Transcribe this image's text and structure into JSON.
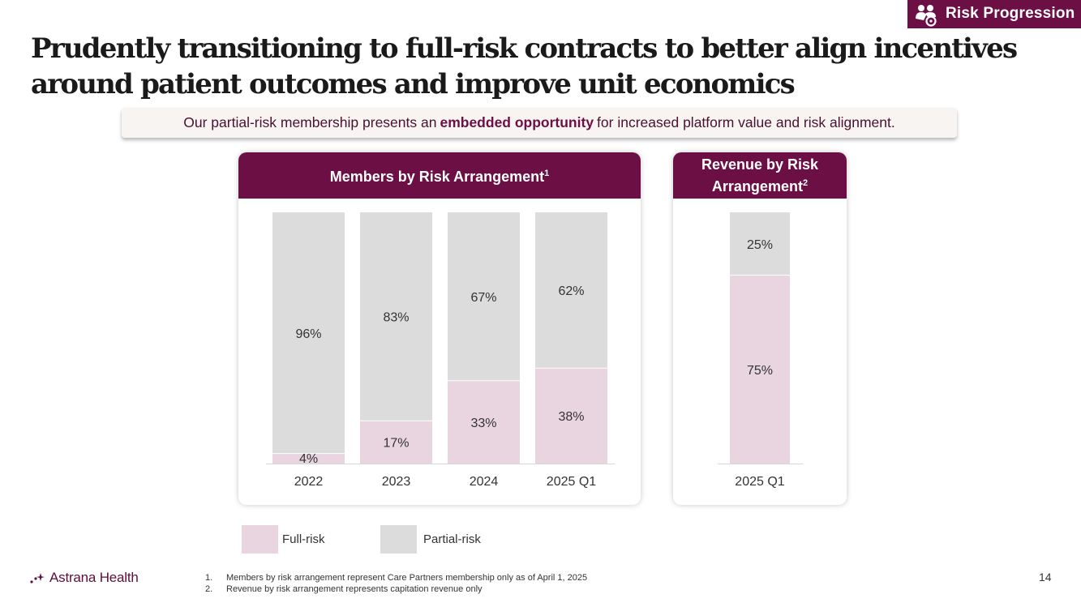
{
  "tag": {
    "label": "Risk Progression",
    "icon": "people-group-icon"
  },
  "title": "Prudently transitioning to full-risk contracts to better align incentives around patient outcomes and improve unit economics",
  "callout": {
    "pre": "Our partial-risk membership presents an",
    "bold": "embedded opportunity",
    "post": "for increased platform value and risk alignment."
  },
  "chart_data": [
    {
      "type": "bar",
      "stacked": true,
      "title": "Members by Risk Arrangement",
      "title_sup": "1",
      "categories": [
        "2022",
        "2023",
        "2024",
        "2025 Q1"
      ],
      "series": [
        {
          "name": "Full-risk",
          "values": [
            4,
            17,
            33,
            38
          ],
          "labels": [
            "4%",
            "17%",
            "33%",
            "38%"
          ]
        },
        {
          "name": "Partial-risk",
          "values": [
            96,
            83,
            67,
            62
          ],
          "labels": [
            "96%",
            "83%",
            "67%",
            "62%"
          ]
        }
      ],
      "ylim": [
        0,
        100
      ],
      "grid": false
    },
    {
      "type": "bar",
      "stacked": true,
      "title": "Revenue by Risk Arrangement",
      "title_sup": "2",
      "categories": [
        "2025 Q1"
      ],
      "series": [
        {
          "name": "Full-risk",
          "values": [
            75
          ],
          "labels": [
            "75%"
          ]
        },
        {
          "name": "Partial-risk",
          "values": [
            25
          ],
          "labels": [
            "25%"
          ]
        }
      ],
      "ylim": [
        0,
        100
      ],
      "grid": false
    }
  ],
  "legend": [
    {
      "label": "Full-risk",
      "color": "#e8d5e0"
    },
    {
      "label": "Partial-risk",
      "color": "#dcdcdc"
    }
  ],
  "colors": {
    "brand": "#6b0f45",
    "full_risk": "#e8d5e0",
    "partial_risk": "#dcdcdc",
    "axis": "#d6d6d6"
  },
  "logo": {
    "text": "Astrana Health",
    "icon": "sparkle-dots-icon"
  },
  "footnotes": [
    {
      "num": "1.",
      "text": "Members by risk arrangement represent Care Partners membership only as of April 1, 2025"
    },
    {
      "num": "2.",
      "text": "Revenue by risk arrangement represents capitation revenue only"
    }
  ],
  "page_number": "14"
}
